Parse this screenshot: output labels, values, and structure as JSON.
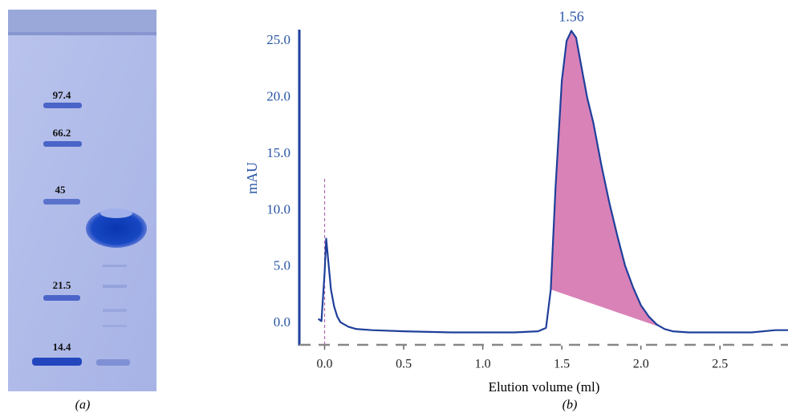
{
  "gel": {
    "markers": [
      "97.4",
      "66.2",
      "45",
      "21.5",
      "14.4"
    ],
    "caption": "(a)"
  },
  "chart_data": {
    "type": "line",
    "caption": "(b)",
    "x_label": "Elution volume (ml)",
    "y_label": "mAU",
    "x": [
      -0.04,
      -0.02,
      0.0,
      0.01,
      0.02,
      0.04,
      0.06,
      0.08,
      0.1,
      0.15,
      0.2,
      0.3,
      0.5,
      0.8,
      1.0,
      1.2,
      1.35,
      1.4,
      1.43,
      1.46,
      1.5,
      1.53,
      1.56,
      1.59,
      1.62,
      1.66,
      1.7,
      1.75,
      1.8,
      1.85,
      1.9,
      1.95,
      2.0,
      2.05,
      2.1,
      2.15,
      2.2,
      2.3,
      2.5,
      2.7,
      2.85,
      2.93
    ],
    "values": [
      0.4,
      0.2,
      4.5,
      7.5,
      6.0,
      3.0,
      1.5,
      0.6,
      0.1,
      -0.3,
      -0.5,
      -0.6,
      -0.7,
      -0.8,
      -0.8,
      -0.8,
      -0.7,
      -0.4,
      3.0,
      12.0,
      21.5,
      25.0,
      25.9,
      25.3,
      23.0,
      20.0,
      17.7,
      14.0,
      10.7,
      7.8,
      5.1,
      3.2,
      1.6,
      0.6,
      -0.1,
      -0.5,
      -0.7,
      -0.8,
      -0.8,
      -0.8,
      -0.6,
      -0.6
    ],
    "color": "#1f3f9a",
    "shade": {
      "from": 1.42,
      "to": 2.2,
      "color": "#d982b8"
    },
    "marker_line": {
      "x": 0,
      "top": 12.8,
      "color": "#b06ab0"
    },
    "annotation": {
      "text": "1.56",
      "x": 1.56,
      "y": 25.9
    },
    "xlim": [
      -0.16,
      2.93
    ],
    "ylim": [
      -1.9,
      26
    ],
    "xticks": [
      {
        "value": 0,
        "label": "0.0"
      },
      0.5,
      {
        "value": 1,
        "label": "1.0"
      },
      1.5,
      {
        "value": 2,
        "label": "2.0"
      },
      2.5
    ],
    "yticks": [
      {
        "value": 0,
        "label": "0.0"
      },
      {
        "value": 5,
        "label": "5.0"
      },
      {
        "value": 10,
        "label": "10.0"
      },
      {
        "value": 15,
        "label": "15.0"
      },
      {
        "value": 20,
        "label": "20.0"
      },
      {
        "value": 25,
        "label": "25.0"
      }
    ],
    "x_axis_style": "dashed"
  }
}
